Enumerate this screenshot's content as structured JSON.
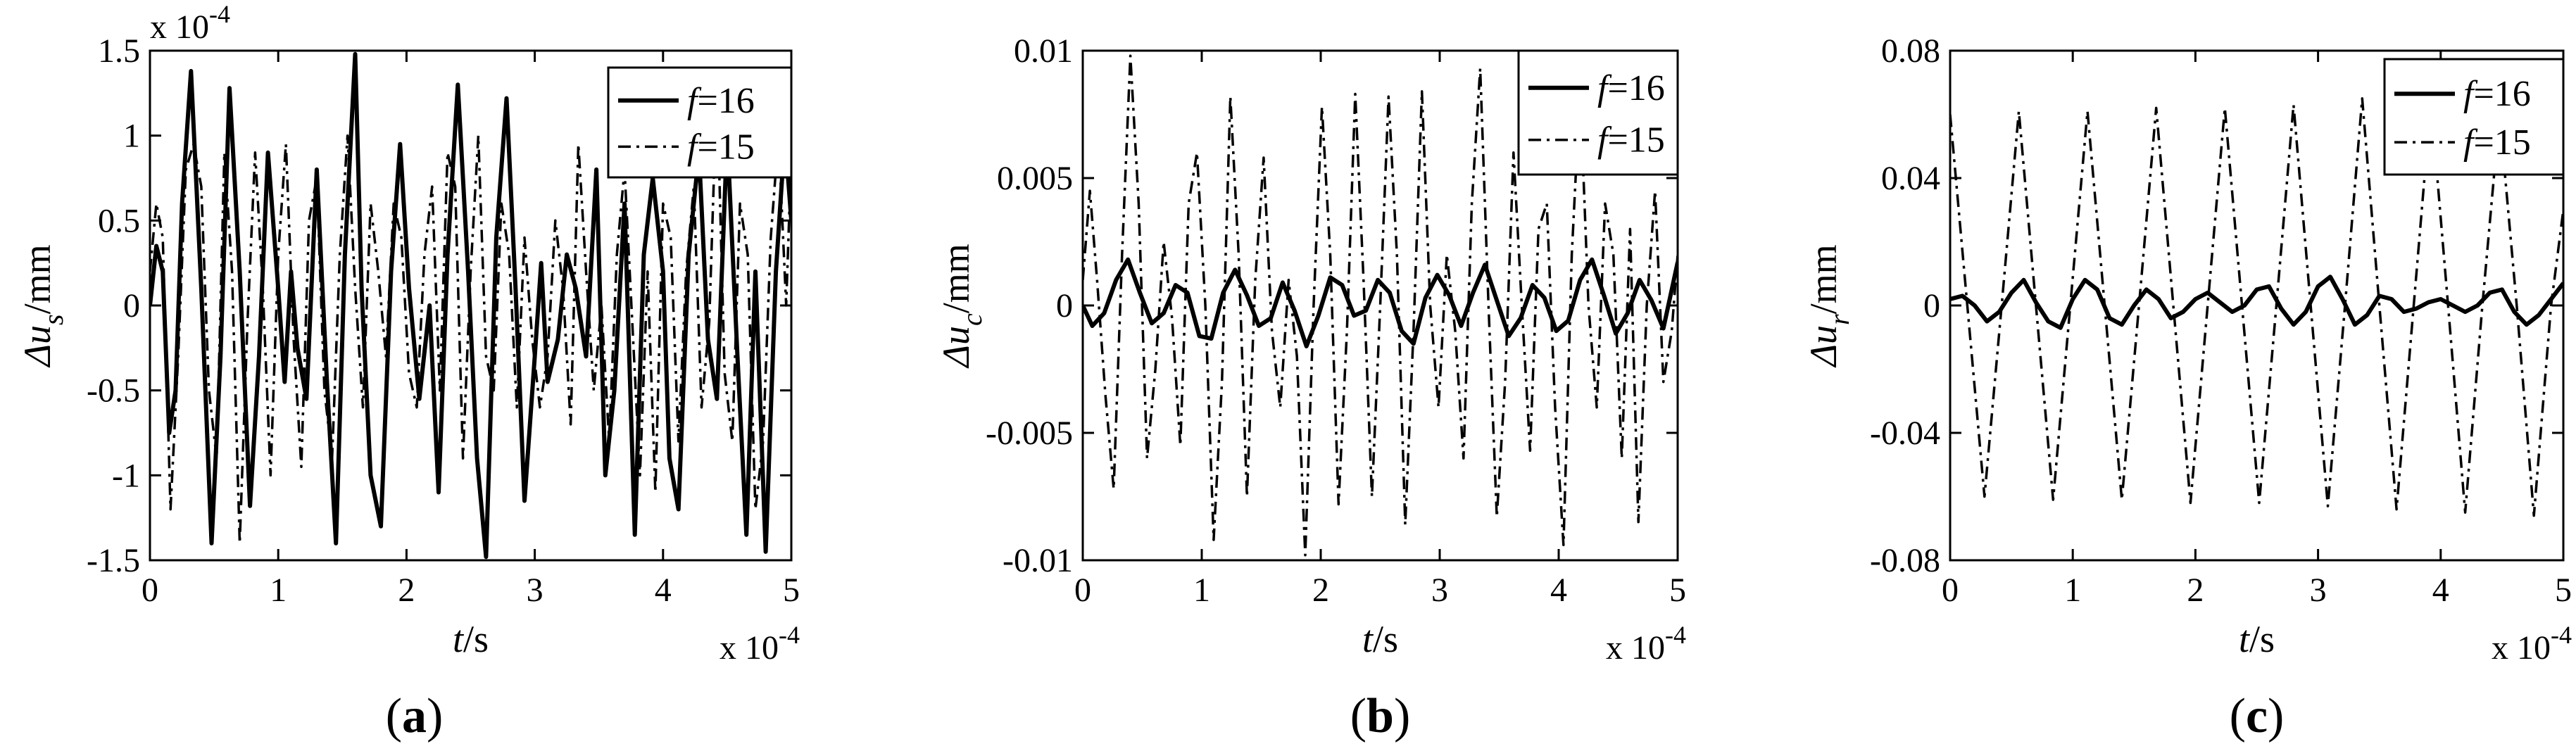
{
  "chart_data": [
    {
      "type": "line",
      "panel": "(a)",
      "caption_open": "(",
      "caption_letter": "a",
      "caption_close": ")",
      "ylabel_main": "Δu",
      "ylabel_sub": "s",
      "ylabel_unit": "/mm",
      "xlabel": "t/s",
      "xlabel_var": "t",
      "xlabel_unit": "/s",
      "x_multiplier": "x 10",
      "x_multiplier_exp": "-4",
      "y_multiplier": "x 10",
      "y_multiplier_exp": "-4",
      "xlim": [
        0,
        5
      ],
      "ylim": [
        -1.5,
        1.5
      ],
      "xticks": [
        "0",
        "1",
        "2",
        "3",
        "4",
        "5"
      ],
      "yticks": [
        "1.5",
        "1",
        "0.5",
        "0",
        "-0.5",
        "-1",
        "-1.5"
      ],
      "ytick_values": [
        1.5,
        1,
        0.5,
        0,
        -0.5,
        -1,
        -1.5
      ],
      "legend": [
        "f=16",
        "f=15"
      ],
      "legend_var": "f",
      "legend_vals": [
        "=16",
        "=15"
      ],
      "legend_position": "top-right",
      "series": [
        {
          "name": "f=16",
          "style": "solid",
          "x": [
            0,
            0.05,
            0.1,
            0.15,
            0.2,
            0.25,
            0.32,
            0.4,
            0.48,
            0.55,
            0.62,
            0.7,
            0.78,
            0.85,
            0.92,
            1.0,
            1.05,
            1.1,
            1.15,
            1.22,
            1.3,
            1.38,
            1.45,
            1.52,
            1.6,
            1.65,
            1.72,
            1.8,
            1.88,
            1.95,
            2.02,
            2.1,
            2.18,
            2.25,
            2.32,
            2.4,
            2.48,
            2.55,
            2.62,
            2.7,
            2.78,
            2.85,
            2.92,
            3.0,
            3.05,
            3.1,
            3.18,
            3.25,
            3.32,
            3.4,
            3.48,
            3.55,
            3.62,
            3.7,
            3.78,
            3.85,
            3.92,
            4.0,
            4.05,
            4.12,
            4.2,
            4.28,
            4.35,
            4.42,
            4.5,
            4.58,
            4.65,
            4.72,
            4.8,
            4.88,
            4.95,
            5.0
          ],
          "y": [
            0,
            0.35,
            0.2,
            -0.75,
            -0.5,
            0.6,
            1.38,
            0.1,
            -1.4,
            -0.3,
            1.28,
            0.2,
            -1.18,
            -0.3,
            0.9,
            0.1,
            -0.45,
            0.2,
            -0.25,
            -0.55,
            0.8,
            -0.45,
            -1.4,
            0.3,
            1.48,
            0.1,
            -1.0,
            -1.3,
            0.2,
            0.95,
            0.1,
            -0.55,
            0.0,
            -1.1,
            0.3,
            1.3,
            0.2,
            -0.9,
            -1.48,
            0.4,
            1.22,
            0.1,
            -1.15,
            -0.3,
            0.25,
            -0.45,
            -0.2,
            0.3,
            0.1,
            -0.3,
            0.8,
            -1.0,
            -0.5,
            0.6,
            -1.35,
            0.3,
            0.75,
            0.2,
            -0.9,
            -1.2,
            0.3,
            0.9,
            -0.2,
            -0.55,
            1.0,
            -0.3,
            -1.35,
            0.2,
            -1.45,
            0.2,
            1.0,
            0.5
          ]
        },
        {
          "name": "f=15",
          "style": "dashdot",
          "x": [
            0,
            0.05,
            0.1,
            0.16,
            0.22,
            0.28,
            0.34,
            0.4,
            0.46,
            0.52,
            0.58,
            0.64,
            0.7,
            0.76,
            0.82,
            0.88,
            0.94,
            1.0,
            1.06,
            1.12,
            1.18,
            1.24,
            1.3,
            1.36,
            1.42,
            1.48,
            1.54,
            1.6,
            1.66,
            1.72,
            1.78,
            1.84,
            1.9,
            1.96,
            2.02,
            2.08,
            2.14,
            2.2,
            2.26,
            2.32,
            2.38,
            2.44,
            2.5,
            2.56,
            2.62,
            2.68,
            2.74,
            2.8,
            2.86,
            2.92,
            2.98,
            3.04,
            3.1,
            3.16,
            3.22,
            3.28,
            3.34,
            3.4,
            3.46,
            3.52,
            3.58,
            3.64,
            3.7,
            3.76,
            3.82,
            3.88,
            3.94,
            4.0,
            4.06,
            4.12,
            4.18,
            4.24,
            4.3,
            4.36,
            4.42,
            4.48,
            4.54,
            4.6,
            4.66,
            4.72,
            4.78,
            4.84,
            4.9,
            4.96,
            5.0
          ],
          "y": [
            0.2,
            0.6,
            0.4,
            -1.2,
            -0.3,
            0.8,
            0.95,
            0.7,
            -0.5,
            -0.9,
            0.9,
            0.2,
            -1.4,
            -0.1,
            0.9,
            0.1,
            -1.0,
            0.3,
            0.95,
            -0.2,
            -0.95,
            0.5,
            0.75,
            -0.5,
            -0.9,
            0.3,
            1.0,
            0.1,
            -0.6,
            0.6,
            0.2,
            -0.3,
            0.6,
            0.4,
            -0.4,
            -0.6,
            0.3,
            0.7,
            -0.5,
            0.9,
            0.7,
            -0.9,
            0.2,
            1.0,
            -0.3,
            -0.5,
            0.6,
            0.3,
            -0.6,
            0.4,
            -0.2,
            -0.6,
            -0.3,
            0.5,
            0.1,
            -0.7,
            0.95,
            0.2,
            -0.5,
            0.0,
            -0.8,
            0.3,
            0.8,
            -0.1,
            -1.0,
            0.2,
            -1.1,
            0.6,
            0.4,
            -0.8,
            0.2,
            0.7,
            -0.6,
            -0.1,
            1.3,
            -0.4,
            -0.8,
            0.6,
            0.3,
            -1.2,
            -0.8,
            0.4,
            1.0,
            0.0,
            0.9
          ]
        }
      ]
    },
    {
      "type": "line",
      "panel": "(b)",
      "caption_open": "(",
      "caption_letter": "b",
      "caption_close": ")",
      "ylabel_main": "Δu",
      "ylabel_sub": "c",
      "ylabel_unit": "/mm",
      "xlabel": "t/s",
      "xlabel_var": "t",
      "xlabel_unit": "/s",
      "x_multiplier": "x 10",
      "x_multiplier_exp": "-4",
      "xlim": [
        0,
        5
      ],
      "ylim": [
        -0.01,
        0.01
      ],
      "xticks": [
        "0",
        "1",
        "2",
        "3",
        "4",
        "5"
      ],
      "yticks": [
        "0.01",
        "0.005",
        "0",
        "-0.005",
        "-0.01"
      ],
      "ytick_values": [
        0.01,
        0.005,
        0,
        -0.005,
        -0.01
      ],
      "legend": [
        "f=16",
        "f=15"
      ],
      "legend_var": "f",
      "legend_vals": [
        "=16",
        "=15"
      ],
      "legend_position": "top-right",
      "series": [
        {
          "name": "f=16",
          "style": "solid",
          "x": [
            0,
            0.08,
            0.18,
            0.28,
            0.38,
            0.48,
            0.58,
            0.68,
            0.78,
            0.88,
            0.98,
            1.08,
            1.18,
            1.28,
            1.38,
            1.48,
            1.58,
            1.68,
            1.78,
            1.88,
            1.98,
            2.08,
            2.18,
            2.28,
            2.38,
            2.48,
            2.58,
            2.68,
            2.78,
            2.88,
            2.98,
            3.08,
            3.18,
            3.28,
            3.38,
            3.48,
            3.58,
            3.68,
            3.78,
            3.88,
            3.98,
            4.08,
            4.18,
            4.28,
            4.38,
            4.48,
            4.58,
            4.68,
            4.78,
            4.88,
            5.0
          ],
          "y": [
            0.0,
            -0.0008,
            -0.0003,
            0.001,
            0.0018,
            0.0005,
            -0.0007,
            -0.0003,
            0.0008,
            0.0005,
            -0.0012,
            -0.0013,
            0.0005,
            0.0014,
            0.0004,
            -0.0008,
            -0.0005,
            0.0009,
            -0.0002,
            -0.0016,
            -0.0004,
            0.0011,
            0.0008,
            -0.0004,
            -0.0002,
            0.001,
            0.0005,
            -0.001,
            -0.0015,
            0.0003,
            0.0012,
            0.0004,
            -0.0008,
            0.0005,
            0.0016,
            0.0002,
            -0.0012,
            -0.0005,
            0.0008,
            0.0003,
            -0.001,
            -0.0006,
            0.001,
            0.0018,
            0.0004,
            -0.0011,
            -0.0003,
            0.001,
            0.0002,
            -0.0009,
            0.0017
          ]
        },
        {
          "name": "f=15",
          "style": "dashdot",
          "x": [
            0,
            0.06,
            0.12,
            0.19,
            0.26,
            0.33,
            0.4,
            0.47,
            0.54,
            0.61,
            0.68,
            0.75,
            0.82,
            0.89,
            0.96,
            1.03,
            1.1,
            1.17,
            1.24,
            1.31,
            1.38,
            1.45,
            1.52,
            1.59,
            1.66,
            1.73,
            1.8,
            1.87,
            1.94,
            2.01,
            2.08,
            2.15,
            2.22,
            2.29,
            2.36,
            2.43,
            2.5,
            2.57,
            2.64,
            2.71,
            2.78,
            2.85,
            2.92,
            2.99,
            3.06,
            3.13,
            3.2,
            3.27,
            3.34,
            3.41,
            3.48,
            3.55,
            3.62,
            3.69,
            3.76,
            3.83,
            3.9,
            3.97,
            4.04,
            4.11,
            4.18,
            4.25,
            4.32,
            4.39,
            4.46,
            4.53,
            4.6,
            4.67,
            4.74,
            4.81,
            4.88,
            4.95,
            5.0
          ],
          "y": [
            0.001,
            0.0045,
            0.001,
            -0.0035,
            -0.0072,
            0.002,
            0.0098,
            0.004,
            -0.006,
            -0.0025,
            0.0025,
            -0.0005,
            -0.0055,
            0.004,
            0.006,
            0.0,
            -0.0092,
            -0.003,
            0.0082,
            0.002,
            -0.0075,
            0.001,
            0.0058,
            -0.001,
            -0.004,
            0.001,
            -0.002,
            -0.0098,
            0.0,
            0.0078,
            0.002,
            -0.0078,
            -0.001,
            0.0083,
            0.001,
            -0.0075,
            0.0,
            0.0082,
            0.002,
            -0.0086,
            -0.001,
            0.0084,
            0.0,
            -0.004,
            0.002,
            -0.001,
            -0.006,
            0.004,
            0.0093,
            0.0,
            -0.0083,
            -0.003,
            0.006,
            0.0,
            -0.0057,
            0.003,
            0.004,
            -0.004,
            -0.0094,
            0.002,
            0.0085,
            0.0,
            -0.004,
            0.004,
            0.002,
            -0.006,
            0.003,
            -0.0085,
            0.0,
            0.0045,
            -0.003,
            -0.001,
            0.002
          ]
        }
      ]
    },
    {
      "type": "line",
      "panel": "(c)",
      "caption_open": "(",
      "caption_letter": "c",
      "caption_close": ")",
      "ylabel_main": "Δu",
      "ylabel_sub": "r",
      "ylabel_unit": "/mm",
      "xlabel": "t/s",
      "xlabel_var": "t",
      "xlabel_unit": "/s",
      "x_multiplier": "x 10",
      "x_multiplier_exp": "-4",
      "xlim": [
        0,
        5
      ],
      "ylim": [
        -0.08,
        0.08
      ],
      "xticks": [
        "0",
        "1",
        "2",
        "3",
        "4",
        "5"
      ],
      "yticks": [
        "0.08",
        "0.04",
        "0",
        "-0.04",
        "-0.08"
      ],
      "ytick_values": [
        0.08,
        0.04,
        0,
        -0.04,
        -0.08
      ],
      "legend": [
        "f=16",
        "f=15"
      ],
      "legend_var": "f",
      "legend_vals": [
        "=16",
        "=15"
      ],
      "legend_position": "top-right",
      "series": [
        {
          "name": "f=16",
          "style": "solid",
          "x": [
            0,
            0.1,
            0.2,
            0.3,
            0.4,
            0.5,
            0.6,
            0.7,
            0.8,
            0.9,
            1.0,
            1.1,
            1.2,
            1.3,
            1.4,
            1.5,
            1.6,
            1.7,
            1.8,
            1.9,
            2.0,
            2.1,
            2.2,
            2.3,
            2.4,
            2.5,
            2.6,
            2.7,
            2.8,
            2.9,
            3.0,
            3.1,
            3.2,
            3.3,
            3.4,
            3.5,
            3.6,
            3.7,
            3.8,
            3.9,
            4.0,
            4.1,
            4.2,
            4.3,
            4.4,
            4.5,
            4.6,
            4.7,
            4.8,
            4.9,
            5.0
          ],
          "y": [
            0.002,
            0.003,
            0.0,
            -0.005,
            -0.002,
            0.004,
            0.008,
            0.001,
            -0.005,
            -0.007,
            0.002,
            0.008,
            0.005,
            -0.004,
            -0.006,
            0.0,
            0.005,
            0.002,
            -0.004,
            -0.002,
            0.002,
            0.004,
            0.001,
            -0.002,
            0.0,
            0.005,
            0.006,
            -0.001,
            -0.006,
            -0.002,
            0.006,
            0.009,
            0.002,
            -0.006,
            -0.003,
            0.003,
            0.002,
            -0.002,
            -0.001,
            0.001,
            0.002,
            0.0,
            -0.002,
            0.0,
            0.004,
            0.005,
            -0.002,
            -0.006,
            -0.003,
            0.002,
            0.007
          ]
        },
        {
          "name": "f=15",
          "style": "dashdot",
          "x": [
            0,
            0.14,
            0.28,
            0.42,
            0.56,
            0.7,
            0.84,
            0.98,
            1.12,
            1.26,
            1.4,
            1.54,
            1.68,
            1.82,
            1.96,
            2.1,
            2.24,
            2.38,
            2.52,
            2.66,
            2.8,
            2.94,
            3.08,
            3.22,
            3.36,
            3.5,
            3.64,
            3.78,
            3.92,
            4.06,
            4.2,
            4.34,
            4.48,
            4.62,
            4.76,
            4.9,
            5.0
          ],
          "y": [
            0.06,
            0.0,
            -0.06,
            0.0,
            0.061,
            0.0,
            -0.061,
            0.0,
            0.061,
            0.0,
            -0.061,
            0.0,
            0.062,
            0.0,
            -0.062,
            0.0,
            0.062,
            0.0,
            -0.062,
            0.0,
            0.063,
            0.0,
            -0.063,
            0.0,
            0.065,
            0.0,
            -0.064,
            0.0,
            0.064,
            0.0,
            -0.065,
            0.0,
            0.06,
            0.0,
            -0.066,
            0.0,
            0.03
          ]
        }
      ]
    }
  ]
}
